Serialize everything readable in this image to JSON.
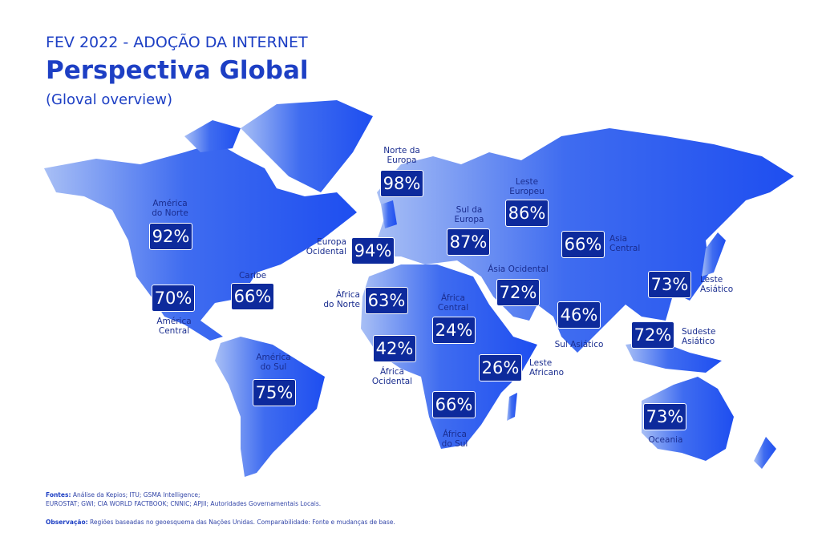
{
  "header": {
    "kicker": "FEV 2022 - ADOÇÃO DA INTERNET",
    "title": "Perspectiva Global",
    "subtitle": "(Gloval overview)"
  },
  "regions": [
    {
      "label": [
        "América",
        "do Norte"
      ],
      "value": "92%"
    },
    {
      "label": [
        "Caribe"
      ],
      "value": "66%"
    },
    {
      "label": [
        "América",
        "Central"
      ],
      "value": "70%"
    },
    {
      "label": [
        "América",
        "do Sul"
      ],
      "value": "75%"
    },
    {
      "label": [
        "Norte da",
        "Europa"
      ],
      "value": "98%"
    },
    {
      "label": [
        "Europa",
        "Ocidental"
      ],
      "value": "94%"
    },
    {
      "label": [
        "Leste",
        "Europeu"
      ],
      "value": "86%"
    },
    {
      "label": [
        "Sul da",
        "Europa"
      ],
      "value": "87%"
    },
    {
      "label": [
        "Asia",
        "Central"
      ],
      "value": "66%"
    },
    {
      "label": [
        "Ásia Ocidental"
      ],
      "value": "72%"
    },
    {
      "label": [
        "África",
        "do Norte"
      ],
      "value": "63%"
    },
    {
      "label": [
        "África",
        "Central"
      ],
      "value": "24%"
    },
    {
      "label": [
        "África",
        "Ocidental"
      ],
      "value": "42%"
    },
    {
      "label": [
        "Leste",
        "Africano"
      ],
      "value": "26%"
    },
    {
      "label": [
        "África",
        "do Sul"
      ],
      "value": "66%"
    },
    {
      "label": [
        "Sul Asiático"
      ],
      "value": "46%"
    },
    {
      "label": [
        "Leste",
        "Asiático"
      ],
      "value": "73%"
    },
    {
      "label": [
        "Sudeste",
        "Asiático"
      ],
      "value": "72%"
    },
    {
      "label": [
        "Oceania"
      ],
      "value": "73%"
    }
  ],
  "footer": {
    "sources_label": "Fontes:",
    "sources": [
      "Análise da Kepios; ITU; GSMA Intelligence;",
      "EUROSTAT; GWI; CIA WORLD FACTBOOK; CNNIC; APJII; Autoridades Governamentais Locais."
    ],
    "note_label": "Observação:",
    "note": "Regiões baseadas no geoesquema das Nações Unidas. Comparabilidade: Fonte e mudanças de base."
  }
}
